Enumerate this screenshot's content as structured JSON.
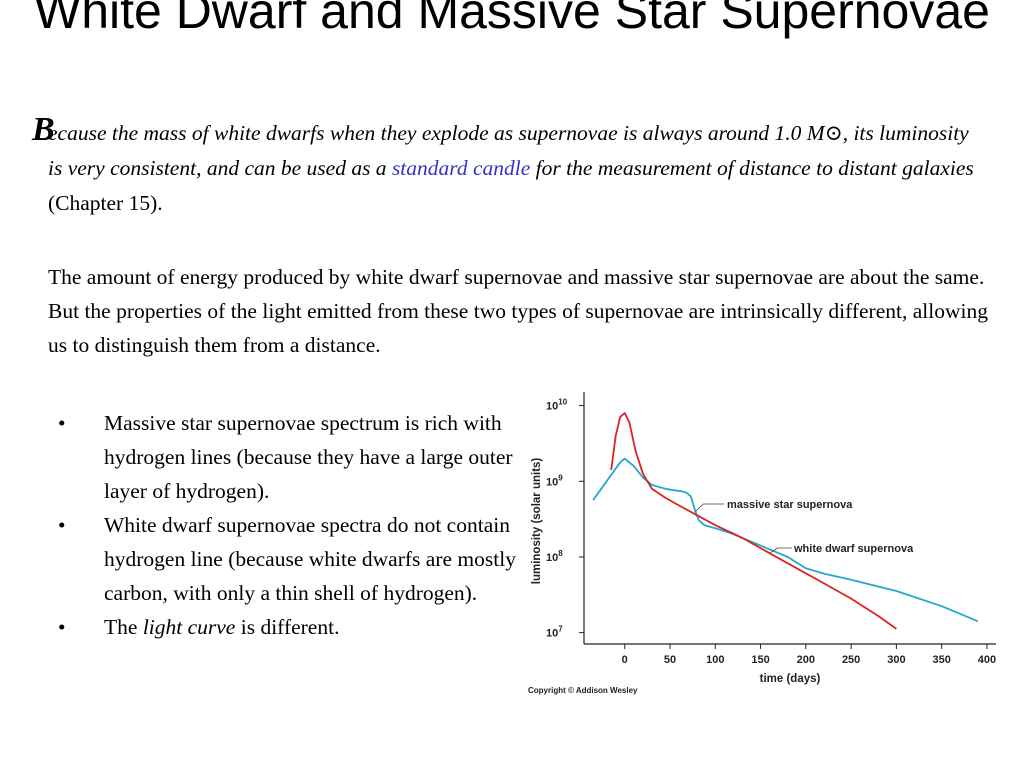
{
  "slide": {
    "title": "White Dwarf and Massive Star Supernovae",
    "para1": {
      "dropcap": "B",
      "text_before_link": "ecause the mass of white dwarfs  when they explode as supernovae is always around 1.0 M⊙, its luminosity is very consistent, and can be used as a",
      "link_text": "standard candle",
      "text_after_link": "for the measurement of distance to distant galaxies",
      "chapter_ref": "(Chapter 15)."
    },
    "para2": "The amount of energy produced by white dwarf supernovae and massive star supernovae are about the same. But the properties of the light emitted from these two types of supernovae are intrinsically different, allowing us to distinguish them from a distance.",
    "bullet_symbol": "•",
    "bullets": [
      {
        "text": "Massive star supernovae spectrum is rich with hydrogen lines (because they have a large outer layer of hydrogen)."
      },
      {
        "text": "White dwarf supernovae spectra do not contain hydrogen line (because white dwarfs are mostly carbon, with only a thin shell of hydrogen)."
      },
      {
        "text_before": "The",
        "italic": "light curve",
        "text_after": "is different."
      }
    ],
    "copyright": "Copyright © Addison Wesley"
  },
  "chart_data": {
    "type": "line",
    "xlabel": "time (days)",
    "ylabel": "luminosity (solar units)",
    "x_ticks": [
      0,
      50,
      100,
      150,
      200,
      250,
      300,
      350,
      400
    ],
    "y_ticks": [
      {
        "exp": 7,
        "label_base": "10",
        "label_exp": "7"
      },
      {
        "exp": 8,
        "label_base": "10",
        "label_exp": "8"
      },
      {
        "exp": 9,
        "label_base": "10",
        "label_exp": "9"
      },
      {
        "exp": 10,
        "label_base": "10",
        "label_exp": "10"
      }
    ],
    "xlim": [
      -45,
      410
    ],
    "ylim_log10": [
      6.85,
      10.1
    ],
    "y_scale": "log",
    "grid": false,
    "series": [
      {
        "name": "massive star supernova",
        "color": "#22aacc",
        "points": [
          [
            -35,
            8.75
          ],
          [
            -20,
            9.0
          ],
          [
            -5,
            9.25
          ],
          [
            0,
            9.3
          ],
          [
            10,
            9.2
          ],
          [
            20,
            9.05
          ],
          [
            30,
            8.95
          ],
          [
            45,
            8.9
          ],
          [
            55,
            8.88
          ],
          [
            62,
            8.87
          ],
          [
            68,
            8.85
          ],
          [
            73,
            8.8
          ],
          [
            78,
            8.6
          ],
          [
            82,
            8.48
          ],
          [
            88,
            8.42
          ],
          [
            100,
            8.38
          ],
          [
            120,
            8.3
          ],
          [
            150,
            8.15
          ],
          [
            180,
            8.0
          ],
          [
            200,
            7.85
          ],
          [
            220,
            7.78
          ],
          [
            250,
            7.7
          ],
          [
            300,
            7.55
          ],
          [
            350,
            7.35
          ],
          [
            390,
            7.15
          ]
        ]
      },
      {
        "name": "white dwarf supernova",
        "color": "#dd2222",
        "points": [
          [
            -15,
            9.15
          ],
          [
            -10,
            9.6
          ],
          [
            -5,
            9.85
          ],
          [
            0,
            9.9
          ],
          [
            5,
            9.78
          ],
          [
            12,
            9.4
          ],
          [
            20,
            9.1
          ],
          [
            30,
            8.9
          ],
          [
            45,
            8.78
          ],
          [
            60,
            8.68
          ],
          [
            80,
            8.55
          ],
          [
            100,
            8.42
          ],
          [
            130,
            8.25
          ],
          [
            160,
            8.05
          ],
          [
            190,
            7.85
          ],
          [
            220,
            7.65
          ],
          [
            250,
            7.45
          ],
          [
            280,
            7.22
          ],
          [
            300,
            7.05
          ]
        ]
      }
    ],
    "annotations": [
      {
        "series": "massive star supernova",
        "text": "massive star supernova"
      },
      {
        "series": "white dwarf supernova",
        "text": "white dwarf supernova"
      }
    ]
  }
}
